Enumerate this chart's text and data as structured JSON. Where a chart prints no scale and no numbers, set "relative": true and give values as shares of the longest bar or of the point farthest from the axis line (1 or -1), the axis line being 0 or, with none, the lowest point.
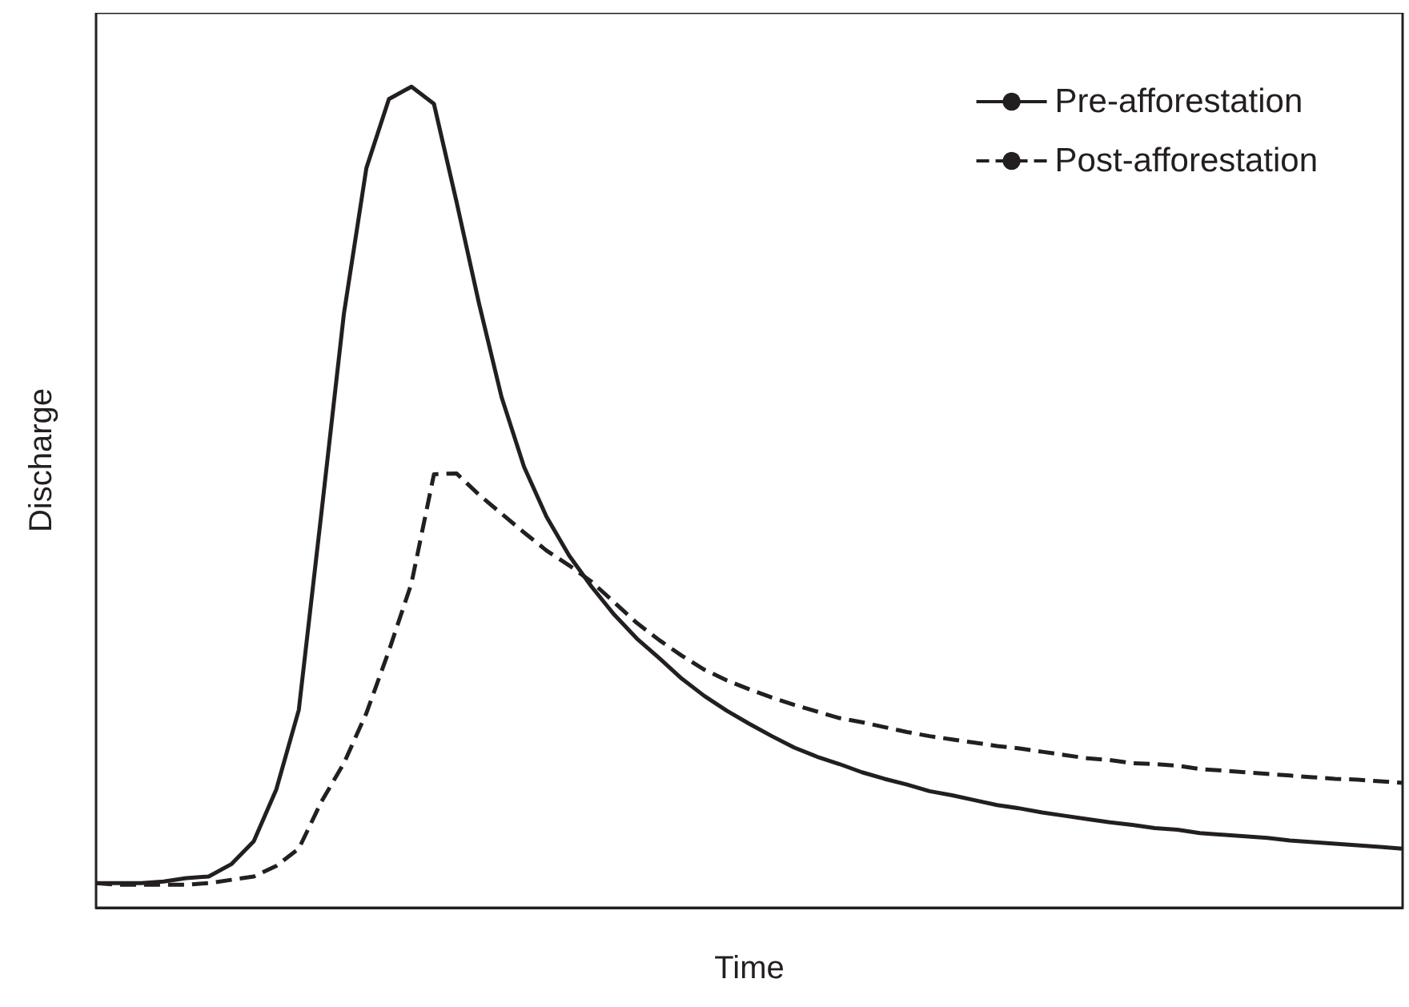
{
  "chart_data": {
    "type": "line",
    "relative": true,
    "xlabel": "Time",
    "ylabel": "Discharge",
    "legend": "top right",
    "grid": false,
    "tick_labels": false,
    "categories": [
      null,
      null,
      null,
      null,
      null,
      null,
      null,
      null,
      null,
      null,
      null,
      null,
      null,
      null,
      null,
      null,
      null,
      null,
      null,
      null,
      null,
      null,
      null,
      null,
      null,
      null,
      null,
      null,
      null,
      null,
      null,
      null,
      null,
      null,
      null,
      null,
      null,
      null,
      null,
      null,
      null,
      null,
      null,
      null,
      null,
      null,
      null,
      null,
      null,
      null,
      null,
      null,
      null,
      null,
      null,
      null,
      null,
      null,
      null
    ],
    "series": [
      {
        "name": "Pre-afforestation",
        "color": "#231f20",
        "line_style": "solid",
        "values": [
          0.03,
          0.03,
          0.03,
          0.032,
          0.036,
          0.038,
          0.053,
          0.081,
          0.144,
          0.241,
          0.48,
          0.723,
          0.901,
          0.985,
          1,
          0.979,
          0.86,
          0.736,
          0.622,
          0.537,
          0.476,
          0.429,
          0.391,
          0.357,
          0.328,
          0.304,
          0.279,
          0.258,
          0.24,
          0.224,
          0.209,
          0.195,
          0.184,
          0.175,
          0.165,
          0.157,
          0.15,
          0.142,
          0.137,
          0.131,
          0.125,
          0.121,
          0.116,
          0.112,
          0.108,
          0.104,
          0.101,
          0.097,
          0.095,
          0.091,
          0.089,
          0.087,
          0.085,
          0.082,
          0.08,
          0.078,
          0.076,
          0.074,
          0.072
        ]
      },
      {
        "name": "Post-afforestation",
        "color": "#231f20",
        "line_style": "dashed",
        "values": [
          0.03,
          0.028,
          0.028,
          0.028,
          0.028,
          0.03,
          0.034,
          0.038,
          0.051,
          0.072,
          0.129,
          0.176,
          0.237,
          0.313,
          0.395,
          0.528,
          0.529,
          0.503,
          0.48,
          0.457,
          0.435,
          0.417,
          0.397,
          0.372,
          0.347,
          0.326,
          0.307,
          0.29,
          0.277,
          0.266,
          0.256,
          0.247,
          0.239,
          0.231,
          0.226,
          0.22,
          0.214,
          0.209,
          0.205,
          0.201,
          0.197,
          0.194,
          0.19,
          0.186,
          0.182,
          0.18,
          0.176,
          0.175,
          0.173,
          0.169,
          0.167,
          0.165,
          0.163,
          0.161,
          0.159,
          0.157,
          0.156,
          0.154,
          0.152
        ]
      }
    ]
  }
}
